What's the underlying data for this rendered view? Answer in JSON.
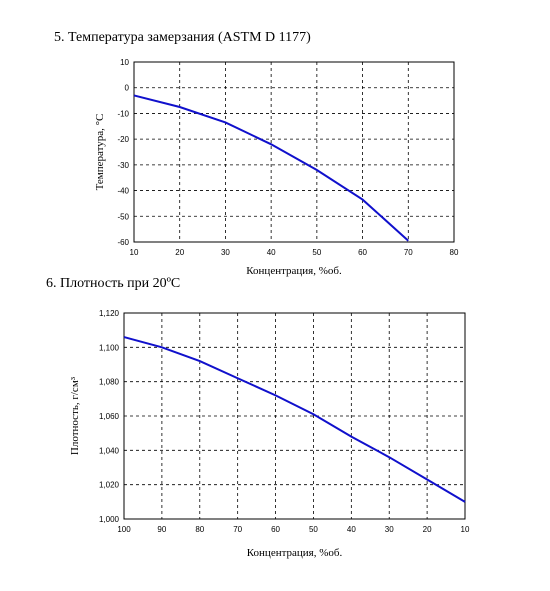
{
  "charts": {
    "freezing": {
      "heading": "5. Температура замерзания (ASTM D 1177)",
      "xlabel": "Концентрация, %об.",
      "ylabel": "Температура, °С"
    },
    "density": {
      "heading": "6. Плотность при 20ºС",
      "xlabel": "Концентрация, %об.",
      "ylabel": "Плотность, г/см³"
    }
  },
  "chart_data": [
    {
      "type": "line",
      "title": "5. Температура замерзания (ASTM D 1177)",
      "xlabel": "Концентрация, %об.",
      "ylabel": "Температура, °С",
      "xlim": [
        10,
        80
      ],
      "ylim": [
        -60,
        10
      ],
      "x_ticks": [
        10,
        20,
        30,
        40,
        50,
        60,
        70,
        80
      ],
      "y_ticks": [
        10,
        0,
        -10,
        -20,
        -30,
        -40,
        -50,
        -60
      ],
      "grid": true,
      "series": [
        {
          "color": "#1010cc",
          "x": [
            10,
            20,
            30,
            40,
            50,
            60,
            70
          ],
          "y": [
            -3,
            -7.5,
            -13.5,
            -22,
            -32,
            -43.5,
            -59.5
          ]
        }
      ]
    },
    {
      "type": "line",
      "title": "6. Плотность при 20ºС",
      "xlabel": "Концентрация, %об.",
      "ylabel": "Плотность, г/см³",
      "xlim": [
        100,
        10
      ],
      "x_reversed": true,
      "ylim": [
        1.0,
        1.12
      ],
      "x_ticks": [
        100,
        90,
        80,
        70,
        60,
        50,
        40,
        30,
        20,
        10
      ],
      "y_ticks": [
        "1,000",
        "1,020",
        "1,040",
        "1,060",
        "1,080",
        "1,100",
        "1,120"
      ],
      "y_tick_values": [
        1.0,
        1.02,
        1.04,
        1.06,
        1.08,
        1.1,
        1.12
      ],
      "grid": true,
      "series": [
        {
          "color": "#1010cc",
          "x": [
            100,
            90,
            80,
            70,
            60,
            50,
            40,
            30,
            20,
            10
          ],
          "y": [
            1.106,
            1.1,
            1.092,
            1.082,
            1.072,
            1.061,
            1.048,
            1.036,
            1.023,
            1.01
          ]
        }
      ]
    }
  ]
}
